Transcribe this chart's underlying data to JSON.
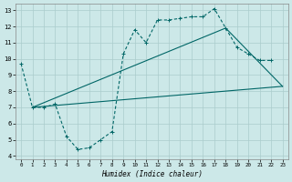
{
  "xlabel": "Humidex (Indice chaleur)",
  "bg_color": "#cce8e8",
  "grid_color": "#aacccc",
  "line_color": "#006666",
  "xlim": [
    -0.5,
    23.5
  ],
  "ylim": [
    3.8,
    13.4
  ],
  "xticks": [
    0,
    1,
    2,
    3,
    4,
    5,
    6,
    7,
    8,
    9,
    10,
    11,
    12,
    13,
    14,
    15,
    16,
    17,
    18,
    19,
    20,
    21,
    22,
    23
  ],
  "yticks": [
    4,
    5,
    6,
    7,
    8,
    9,
    10,
    11,
    12,
    13
  ],
  "line1_x": [
    0,
    1,
    2,
    3,
    4,
    5,
    6,
    7,
    8,
    9,
    10,
    11,
    12,
    13,
    14,
    15,
    16,
    17,
    18,
    19,
    20,
    21,
    22
  ],
  "line1_y": [
    9.7,
    7.0,
    7.0,
    7.2,
    5.2,
    4.4,
    4.5,
    5.0,
    5.5,
    10.3,
    11.8,
    11.0,
    12.4,
    12.4,
    12.5,
    12.6,
    12.6,
    13.1,
    11.9,
    10.7,
    10.3,
    9.9,
    9.9
  ],
  "line2_x": [
    1,
    23
  ],
  "line2_y": [
    7.0,
    8.3
  ],
  "line3_x": [
    1,
    18,
    23
  ],
  "line3_y": [
    7.0,
    11.9,
    8.3
  ]
}
